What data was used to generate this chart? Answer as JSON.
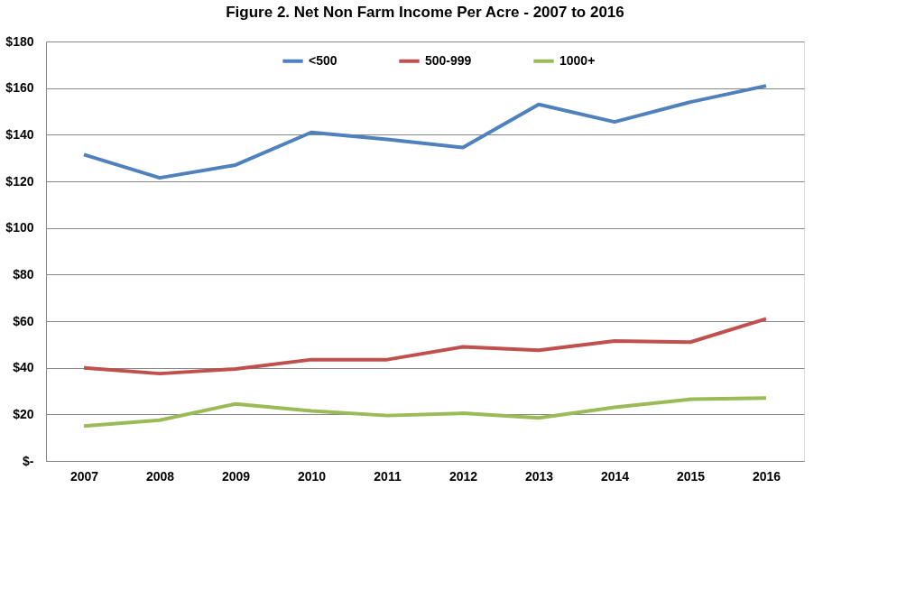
{
  "chart_data": {
    "type": "line",
    "title": "Figure 2.  Net Non Farm Income Per Acre - 2007 to 2016",
    "categories": [
      "2007",
      "2008",
      "2009",
      "2010",
      "2011",
      "2012",
      "2013",
      "2014",
      "2015",
      "2016"
    ],
    "series": [
      {
        "name": "<500",
        "color": "#4f81bd",
        "values": [
          131.5,
          121.5,
          127,
          141,
          138,
          134.5,
          153,
          145.5,
          154,
          161
        ]
      },
      {
        "name": "500-999",
        "color": "#c0504d",
        "values": [
          40,
          37.5,
          39.5,
          43.5,
          43.5,
          49,
          47.5,
          51.5,
          51,
          61
        ]
      },
      {
        "name": "1000+",
        "color": "#9bbb59",
        "values": [
          15,
          17.5,
          24.5,
          21.5,
          19.5,
          20.5,
          18.5,
          23,
          26.5,
          27
        ]
      }
    ],
    "ylim": [
      0,
      180
    ],
    "yticks": [
      {
        "value": 0,
        "label": "$-"
      },
      {
        "value": 20,
        "label": "$20"
      },
      {
        "value": 40,
        "label": "$40"
      },
      {
        "value": 60,
        "label": "$60"
      },
      {
        "value": 80,
        "label": "$80"
      },
      {
        "value": 100,
        "label": "$100"
      },
      {
        "value": 120,
        "label": "$120"
      },
      {
        "value": 140,
        "label": "$140"
      },
      {
        "value": 160,
        "label": "$160"
      },
      {
        "value": 180,
        "label": "$180"
      }
    ],
    "grid": "y",
    "legend": "top",
    "marker": "none",
    "line_style": "solid"
  }
}
